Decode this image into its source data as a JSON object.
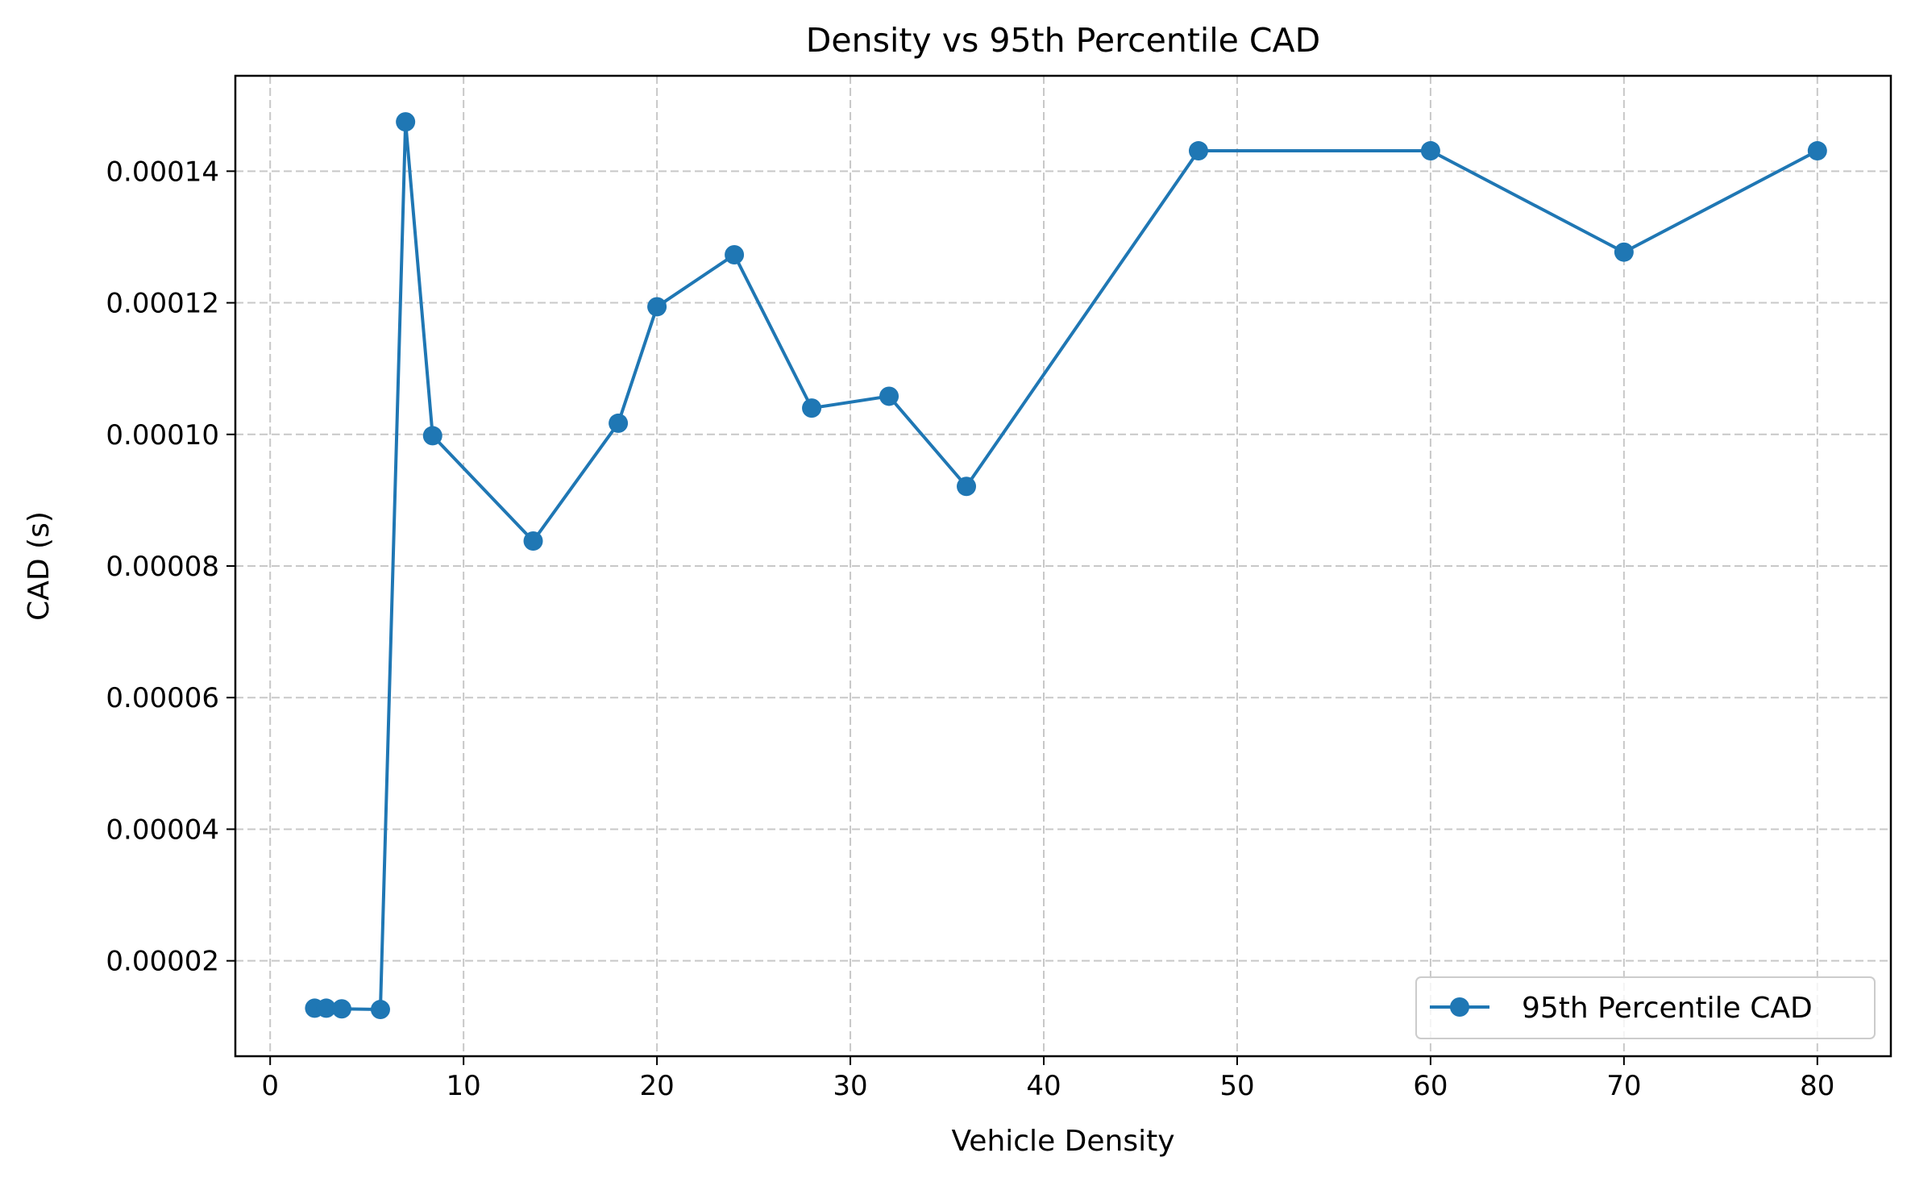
{
  "chart_data": {
    "type": "line",
    "title": "Density vs 95th Percentile CAD",
    "xlabel": "Vehicle Density",
    "ylabel": "CAD (s)",
    "xlim": [
      -1.8,
      83.8
    ],
    "ylim": [
      5.5e-06,
      0.0001545
    ],
    "xticks": [
      0,
      10,
      20,
      30,
      40,
      50,
      60,
      70,
      80
    ],
    "xtick_labels": [
      "0",
      "10",
      "20",
      "30",
      "40",
      "50",
      "60",
      "70",
      "80"
    ],
    "yticks": [
      2e-05,
      4e-05,
      6e-05,
      8e-05,
      0.0001,
      0.00012,
      0.00014
    ],
    "ytick_labels": [
      "0.00002",
      "0.00004",
      "0.00006",
      "0.00008",
      "0.00010",
      "0.00012",
      "0.00014"
    ],
    "grid": true,
    "legend_position": "lower right",
    "series": [
      {
        "name": "95th Percentile CAD",
        "color": "#1f77b4",
        "marker": "circle",
        "x": [
          2.3,
          2.9,
          3.7,
          5.7,
          7.0,
          8.4,
          13.6,
          18.0,
          20.0,
          24.0,
          28.0,
          32.0,
          36.0,
          48.0,
          60.0,
          70.0,
          80.0
        ],
        "y": [
          1.28e-05,
          1.28e-05,
          1.27e-05,
          1.26e-05,
          0.0001475,
          9.98e-05,
          8.38e-05,
          0.0001017,
          0.0001194,
          0.0001273,
          0.000104,
          0.0001058,
          9.21e-05,
          0.0001431,
          0.0001431,
          0.0001277,
          0.0001431
        ]
      }
    ]
  }
}
